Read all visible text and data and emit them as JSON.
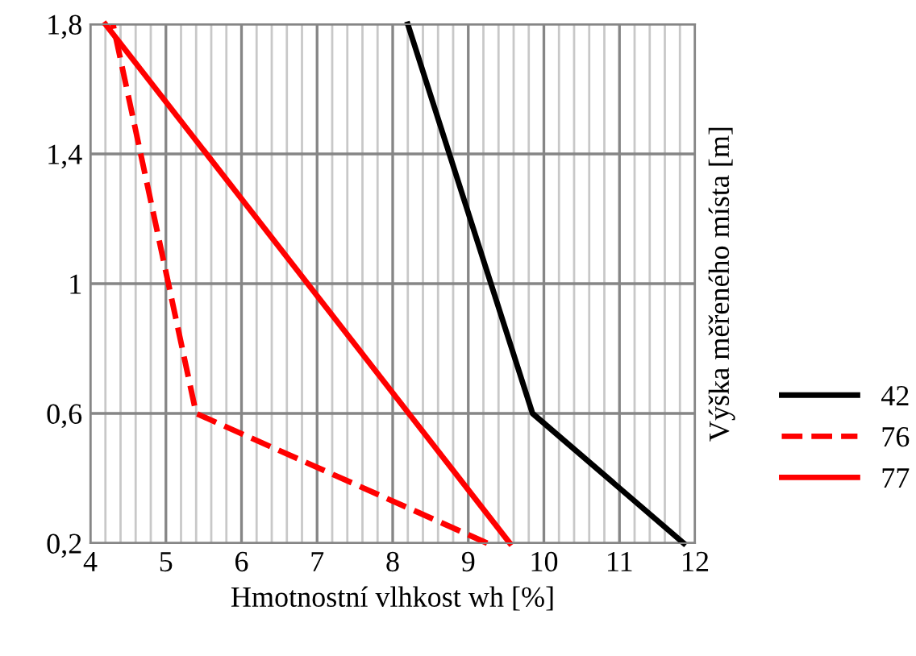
{
  "chart_data": {
    "type": "line",
    "xlabel": "Hmotnostní vlhkost wh [%]",
    "ylabel": "Výška měřeného místa [m]",
    "xlim": [
      4,
      12
    ],
    "xticks": [
      4,
      5,
      6,
      7,
      8,
      9,
      10,
      11,
      12
    ],
    "ylim": [
      0.2,
      1.8
    ],
    "yticks": [
      {
        "value": 0.2,
        "label": "0,2"
      },
      {
        "value": 0.6,
        "label": "0,6"
      },
      {
        "value": 1,
        "label": "1"
      },
      {
        "value": 1.4,
        "label": "1,4"
      },
      {
        "value": 1.8,
        "label": "1,8"
      }
    ],
    "grid": true,
    "legend": "right",
    "marker": "none",
    "series": [
      {
        "name": "42",
        "color": "#000000",
        "line_style": "solid",
        "x": [
          11.85,
          9.85,
          8.2
        ],
        "values": [
          0.2,
          0.6,
          1.8
        ]
      },
      {
        "name": "76",
        "color": "#ff0000",
        "line_style": "dashed",
        "x": [
          9.25,
          5.4,
          4.3
        ],
        "values": [
          0.2,
          0.6,
          1.8
        ]
      },
      {
        "name": "77",
        "color": "#ff0000",
        "line_style": "solid",
        "x": [
          9.55,
          4.2
        ],
        "values": [
          0.2,
          1.8
        ]
      }
    ]
  }
}
